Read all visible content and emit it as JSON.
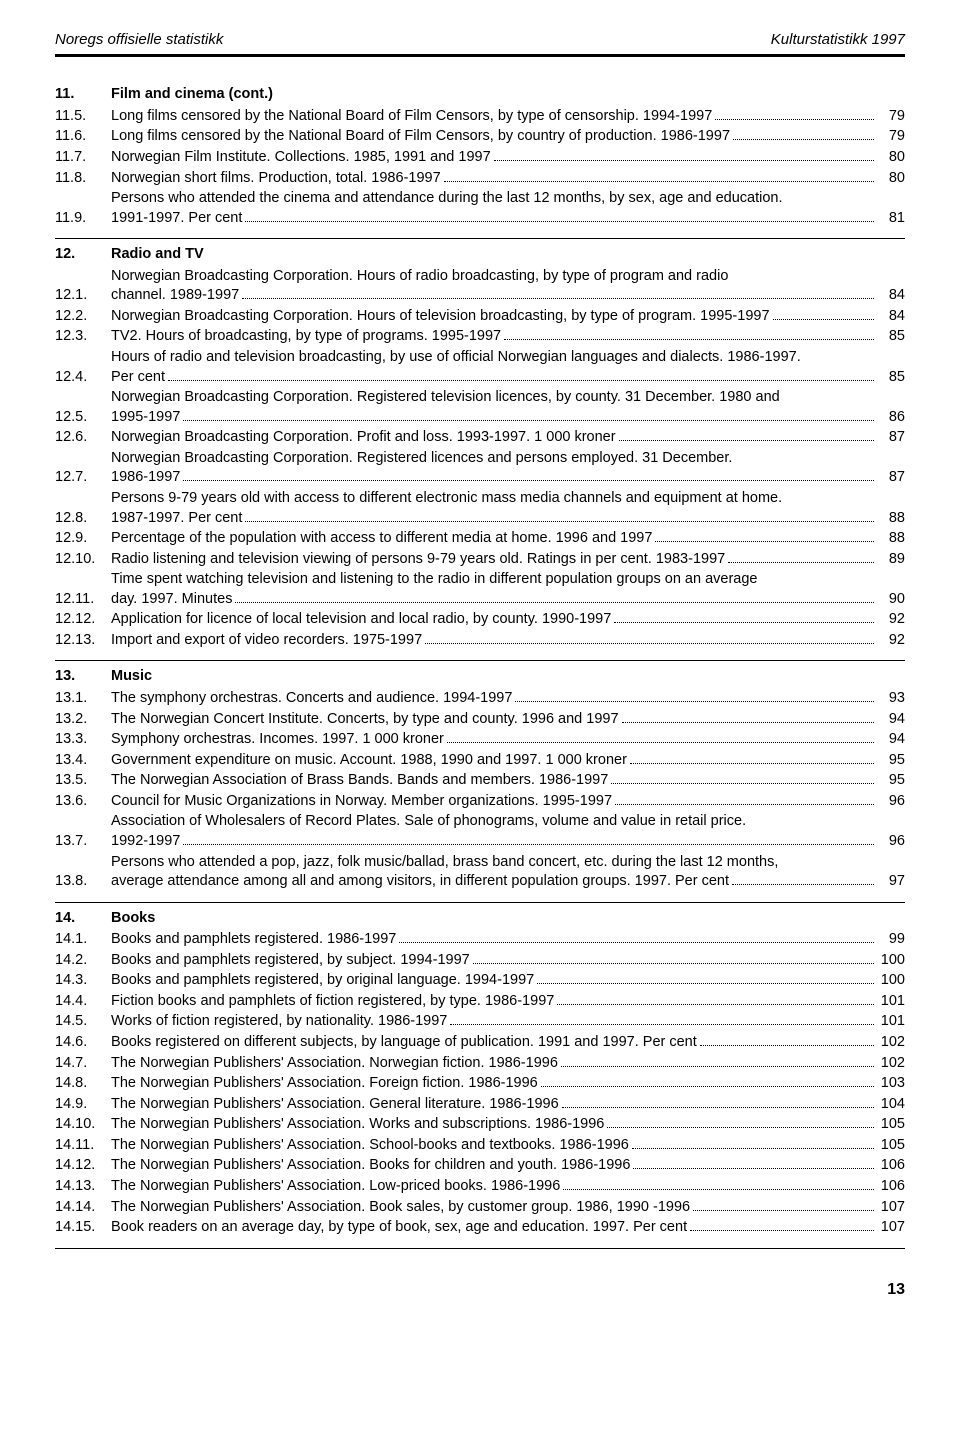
{
  "header": {
    "left": "Noregs offisielle statistikk",
    "right": "Kulturstatistikk 1997"
  },
  "page_number": "13",
  "sections": [
    {
      "num": "11.",
      "title": "Film and cinema (cont.)",
      "entries": [
        {
          "num": "11.5.",
          "lines": [
            "Long films censored by the National Board of Film Censors, by type of censorship. 1994-1997"
          ],
          "page": "79"
        },
        {
          "num": "11.6.",
          "lines": [
            "Long films censored by the National Board of Film Censors, by country of production. 1986-1997"
          ],
          "page": "79"
        },
        {
          "num": "11.7.",
          "lines": [
            "Norwegian Film Institute. Collections. 1985, 1991 and 1997"
          ],
          "page": "80"
        },
        {
          "num": "11.8.",
          "lines": [
            "Norwegian short films. Production, total. 1986-1997"
          ],
          "page": "80"
        },
        {
          "num": "11.9.",
          "lines": [
            "Persons who attended the cinema and attendance during the last 12 months, by sex, age and education.",
            "1991-1997. Per cent"
          ],
          "page": "81"
        }
      ]
    },
    {
      "num": "12.",
      "title": "Radio and TV",
      "entries": [
        {
          "num": "12.1.",
          "lines": [
            "Norwegian Broadcasting Corporation. Hours of radio broadcasting, by type of program and radio",
            "channel. 1989-1997"
          ],
          "page": "84"
        },
        {
          "num": "12.2.",
          "lines": [
            "Norwegian Broadcasting Corporation. Hours of television broadcasting, by type of program. 1995-1997"
          ],
          "page": "84"
        },
        {
          "num": "12.3.",
          "lines": [
            "TV2. Hours of broadcasting, by type of programs. 1995-1997"
          ],
          "page": "85"
        },
        {
          "num": "12.4.",
          "lines": [
            "Hours of radio and television broadcasting, by use of official Norwegian languages and dialects. 1986-1997.",
            "Per cent"
          ],
          "page": "85"
        },
        {
          "num": "12.5.",
          "lines": [
            "Norwegian Broadcasting Corporation. Registered television licences, by county. 31 December. 1980 and",
            "1995-1997"
          ],
          "page": "86"
        },
        {
          "num": "12.6.",
          "lines": [
            "Norwegian Broadcasting Corporation. Profit and loss. 1993-1997. 1 000 kroner"
          ],
          "page": "87"
        },
        {
          "num": "12.7.",
          "lines": [
            "Norwegian Broadcasting Corporation. Registered licences and persons employed. 31 December.",
            "1986-1997"
          ],
          "page": "87"
        },
        {
          "num": "12.8.",
          "lines": [
            "Persons 9-79 years old with access to different electronic mass media channels and equipment at home.",
            "1987-1997. Per cent"
          ],
          "page": "88"
        },
        {
          "num": "12.9.",
          "lines": [
            "Percentage of the population with access to different media at home. 1996 and 1997"
          ],
          "page": "88"
        },
        {
          "num": "12.10.",
          "lines": [
            "Radio listening and television viewing of persons 9-79 years old. Ratings in per cent. 1983-1997"
          ],
          "page": "89"
        },
        {
          "num": "12.11.",
          "lines": [
            "Time spent watching television and listening to the radio in different population groups on an average",
            "day. 1997. Minutes"
          ],
          "page": "90"
        },
        {
          "num": "12.12.",
          "lines": [
            "Application for licence of local television and local radio, by county. 1990-1997"
          ],
          "page": "92"
        },
        {
          "num": "12.13.",
          "lines": [
            "Import and export of video recorders. 1975-1997"
          ],
          "page": "92"
        }
      ]
    },
    {
      "num": "13.",
      "title": "Music",
      "entries": [
        {
          "num": "13.1.",
          "lines": [
            "The symphony orchestras. Concerts and audience. 1994-1997"
          ],
          "page": "93"
        },
        {
          "num": "13.2.",
          "lines": [
            "The Norwegian Concert Institute. Concerts, by type and county. 1996 and 1997"
          ],
          "page": "94"
        },
        {
          "num": "13.3.",
          "lines": [
            "Symphony orchestras. Incomes. 1997. 1 000 kroner"
          ],
          "page": "94"
        },
        {
          "num": "13.4.",
          "lines": [
            "Government expenditure on music. Account. 1988, 1990 and 1997. 1 000 kroner"
          ],
          "page": "95"
        },
        {
          "num": "13.5.",
          "lines": [
            "The Norwegian Association of Brass Bands. Bands and members. 1986-1997"
          ],
          "page": "95"
        },
        {
          "num": "13.6.",
          "lines": [
            "Council for Music Organizations in Norway. Member organizations. 1995-1997"
          ],
          "page": "96"
        },
        {
          "num": "13.7.",
          "lines": [
            "Association of Wholesalers of Record Plates. Sale of phonograms, volume and value in retail price.",
            "1992-1997"
          ],
          "page": "96"
        },
        {
          "num": "13.8.",
          "lines": [
            "Persons who attended a pop, jazz, folk music/ballad, brass band concert, etc. during the last 12 months,",
            "average attendance among all and among visitors, in different population groups. 1997. Per cent"
          ],
          "page": "97"
        }
      ]
    },
    {
      "num": "14.",
      "title": "Books",
      "entries": [
        {
          "num": "14.1.",
          "lines": [
            "Books and pamphlets registered. 1986-1997"
          ],
          "page": "99"
        },
        {
          "num": "14.2.",
          "lines": [
            "Books and pamphlets registered, by subject. 1994-1997"
          ],
          "page": "100"
        },
        {
          "num": "14.3.",
          "lines": [
            "Books and pamphlets registered, by original language. 1994-1997"
          ],
          "page": "100"
        },
        {
          "num": "14.4.",
          "lines": [
            "Fiction books and pamphlets of fiction registered, by type. 1986-1997"
          ],
          "page": "101"
        },
        {
          "num": "14.5.",
          "lines": [
            "Works of fiction registered, by nationality. 1986-1997"
          ],
          "page": "101"
        },
        {
          "num": "14.6.",
          "lines": [
            "Books registered on different subjects, by language of publication. 1991 and 1997. Per cent"
          ],
          "page": "102"
        },
        {
          "num": "14.7.",
          "lines": [
            "The Norwegian Publishers' Association. Norwegian fiction. 1986-1996"
          ],
          "page": "102"
        },
        {
          "num": "14.8.",
          "lines": [
            "The Norwegian Publishers' Association. Foreign fiction. 1986-1996"
          ],
          "page": "103"
        },
        {
          "num": "14.9.",
          "lines": [
            "The Norwegian Publishers' Association. General literature. 1986-1996"
          ],
          "page": "104"
        },
        {
          "num": "14.10.",
          "lines": [
            "The Norwegian Publishers' Association. Works and subscriptions. 1986-1996"
          ],
          "page": "105"
        },
        {
          "num": "14.11.",
          "lines": [
            "The Norwegian Publishers' Association. School-books and textbooks. 1986-1996"
          ],
          "page": "105"
        },
        {
          "num": "14.12.",
          "lines": [
            "The Norwegian Publishers' Association. Books for children and youth. 1986-1996"
          ],
          "page": "106"
        },
        {
          "num": "14.13.",
          "lines": [
            "The Norwegian Publishers' Association. Low-priced books. 1986-1996"
          ],
          "page": "106"
        },
        {
          "num": "14.14.",
          "lines": [
            "The Norwegian Publishers' Association. Book sales, by customer group. 1986, 1990 -1996"
          ],
          "page": "107"
        },
        {
          "num": "14.15.",
          "lines": [
            "Book readers on an average day, by type of book, sex, age and education. 1997. Per cent"
          ],
          "page": "107"
        }
      ]
    }
  ]
}
